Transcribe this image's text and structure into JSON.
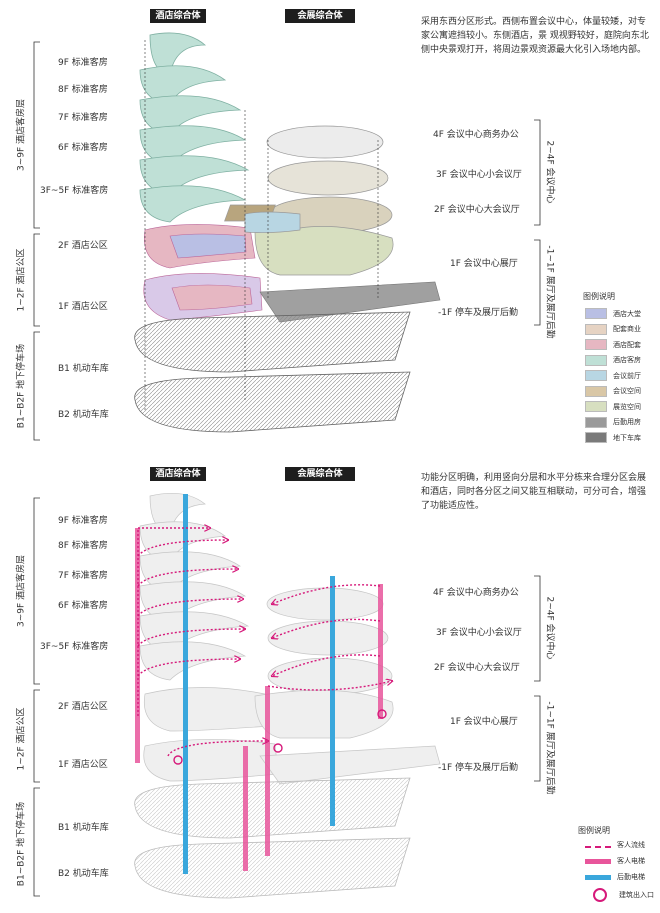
{
  "top": {
    "tab_hotel": "酒店综合体",
    "tab_expo": "会展综合体",
    "description": "采用东西分区形式。西侧布置会议中心，体量较矮，对专家公寓遮挡较小。东侧酒店，景 观视野较好，庭院向东北侧中央景观打开，将周边景观资源最大化引入场地内部。",
    "left_floors": [
      "9F 标准客房",
      "8F 标准客房",
      "7F 标准客房",
      "6F 标准客房",
      "3F~5F 标准客房",
      "2F 酒店公区",
      "1F 酒店公区",
      "B1 机动车库",
      "B2 机动车库"
    ],
    "left_groups": [
      "3~9F 酒店客房层",
      "1~2F 酒店公区",
      "B1~B2F 地下停车场"
    ],
    "right_floors": [
      "4F 会议中心商务办公",
      "3F 会议中心小会议厅",
      "2F 会议中心大会议厅",
      "1F 会议中心展厅",
      "-1F 停车及展厅后勤"
    ],
    "right_groups": [
      "2~4F 会议中心",
      "-1~1F 展厅及展厅后勤"
    ],
    "legend_title": "图例说明",
    "legend": [
      {
        "label": "酒店大堂",
        "color": "#b9bfe4"
      },
      {
        "label": "配套商业",
        "color": "#e6d3c3"
      },
      {
        "label": "酒店配套",
        "color": "#e6b7c2"
      },
      {
        "label": "酒店客房",
        "color": "#bfe0d6"
      },
      {
        "label": "会议前厅",
        "color": "#b8d6e3"
      },
      {
        "label": "会议空间",
        "color": "#d9c7a6"
      },
      {
        "label": "展览空间",
        "color": "#d7dfc0"
      },
      {
        "label": "后勤用房",
        "color": "#9a9a9a"
      },
      {
        "label": "地下车库",
        "color": "#7a7a7a"
      }
    ]
  },
  "bottom": {
    "tab_hotel": "酒店综合体",
    "tab_expo": "会展综合体",
    "description": "功能分区明确，利用竖向分层和水平分栋来合理分区会展和酒店，同时各分区之间又能互相联动，可分可合，增强了功能适应性。",
    "left_floors": [
      "9F 标准客房",
      "8F 标准客房",
      "7F 标准客房",
      "6F 标准客房",
      "3F~5F 标准客房",
      "2F 酒店公区",
      "1F 酒店公区",
      "B1 机动车库",
      "B2 机动车库"
    ],
    "left_groups": [
      "3~9F 酒店客房层",
      "1~2F 酒店公区",
      "B1~B2F 地下停车场"
    ],
    "right_floors": [
      "4F 会议中心商务办公",
      "3F 会议中心小会议厅",
      "2F 会议中心大会议厅",
      "1F 会议中心展厅",
      "-1F 停车及展厅后勤"
    ],
    "right_groups": [
      "2~4F 会议中心",
      "-1~1F 展厅及展厅后勤"
    ],
    "legend_title": "图例说明",
    "legend": [
      {
        "label": "客人流线",
        "color": "#d6197a"
      },
      {
        "label": "客人电梯",
        "color": "#e8559b"
      },
      {
        "label": "后勤电梯",
        "color": "#3aa7dc"
      },
      {
        "label": "建筑出入口",
        "color": "#d6197a"
      }
    ]
  }
}
